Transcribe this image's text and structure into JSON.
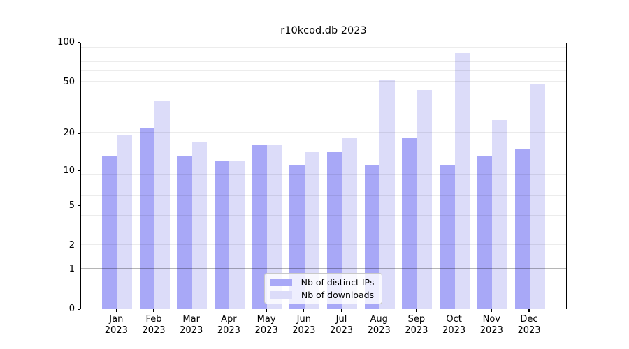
{
  "title": "r10kcod.db 2023",
  "colors": {
    "distinct_ips": "#A8A8F7",
    "downloads": "#DCDCF9",
    "axis": "#000000",
    "grid_major": "#B6B6B6",
    "grid_minor": "#ECECEC",
    "legend_border": "#C9C9C9"
  },
  "chart_data": {
    "type": "bar",
    "title": "r10kcod.db 2023",
    "categories": [
      "Jan",
      "Feb",
      "Mar",
      "Apr",
      "May",
      "Jun",
      "Jul",
      "Aug",
      "Sep",
      "Oct",
      "Nov",
      "Dec"
    ],
    "year_label": "2023",
    "series": [
      {
        "name": "Nb of distinct IPs",
        "color": "#A8A8F7",
        "values": [
          13,
          22,
          13,
          12,
          16,
          11,
          14,
          11,
          18,
          11,
          13,
          15
        ]
      },
      {
        "name": "Nb of downloads",
        "color": "#DCDCF9",
        "values": [
          19,
          35,
          17,
          12,
          16,
          14,
          18,
          51,
          43,
          82,
          25,
          48
        ]
      }
    ],
    "yscale": "log1p",
    "ylim": [
      0,
      100
    ],
    "y_ticks_labeled": [
      100,
      50,
      20,
      10,
      5,
      2,
      1,
      0
    ],
    "y_grid_major": [
      1,
      10
    ],
    "y_grid_minor": [
      2,
      3,
      4,
      5,
      6,
      7,
      8,
      9,
      20,
      30,
      40,
      50,
      60,
      70,
      80,
      90
    ],
    "grid": true,
    "legend_position": "lower-center",
    "xlabel": "",
    "ylabel": ""
  }
}
